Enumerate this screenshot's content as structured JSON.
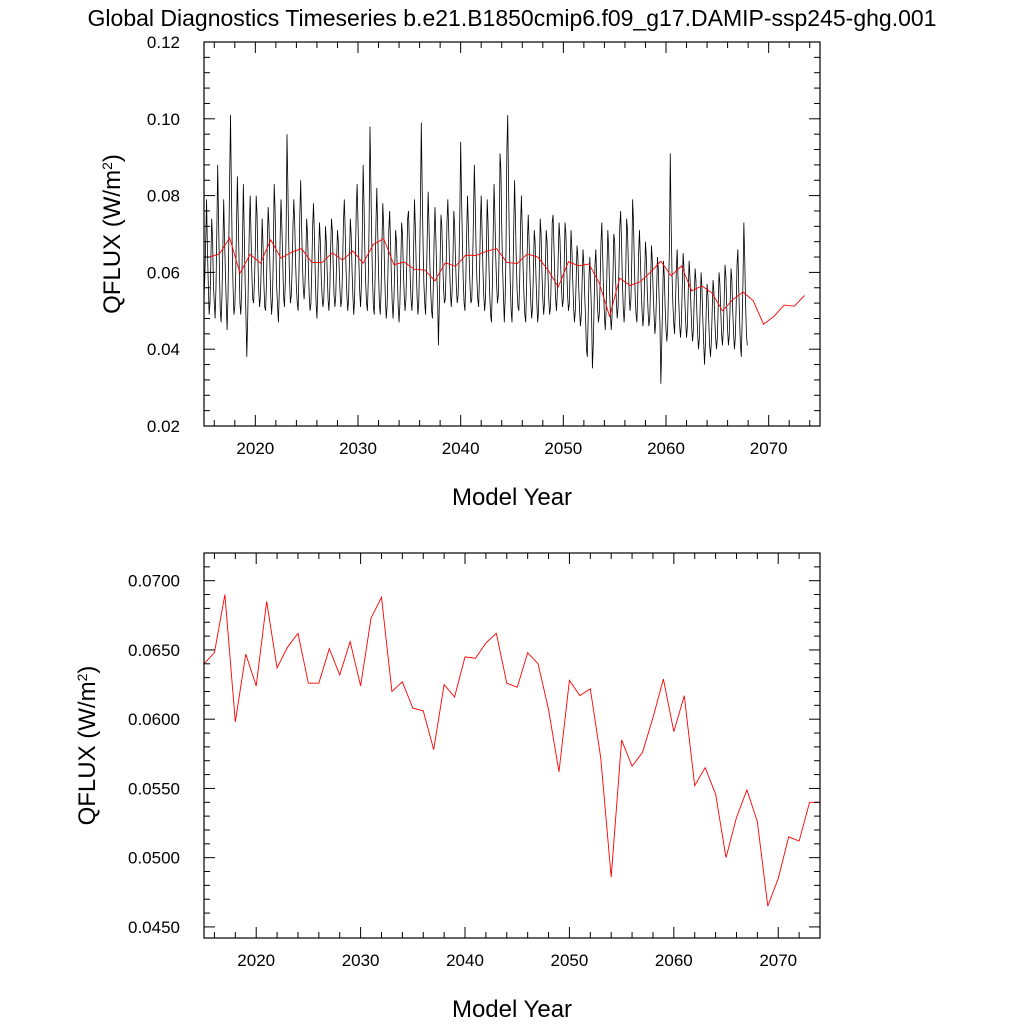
{
  "title": "Global Diagnostics Timeseries b.e21.B1850cmip6.f09_g17.DAMIP-ssp245-ghg.001",
  "colors": {
    "monthly_line": "#000000",
    "annual_line": "#ff0000",
    "axis": "#000000"
  },
  "chart_data": [
    {
      "type": "line",
      "xlabel": "Model Year",
      "ylabel_main": "QFLUX (W/m",
      "ylabel_sup": "2",
      "ylabel_close": ")",
      "xlim": [
        2015,
        2075
      ],
      "ylim": [
        0.02,
        0.12
      ],
      "xticks": [
        2020,
        2030,
        2040,
        2050,
        2060,
        2070
      ],
      "xtick_labels": [
        "2020",
        "2030",
        "2040",
        "2050",
        "2060",
        "2070"
      ],
      "yticks": [
        0.02,
        0.04,
        0.06,
        0.08,
        0.1,
        0.12
      ],
      "ytick_labels": [
        "0.02",
        "0.04",
        "0.06",
        "0.08",
        "0.10",
        "0.12"
      ],
      "grid": false,
      "series": [
        {
          "kind": "monthly",
          "color": "#000000",
          "x_start": 2015.0,
          "x_step": 0.083333,
          "values": [
            0.053,
            0.059,
            0.068,
            0.079,
            0.066,
            0.057,
            0.049,
            0.052,
            0.063,
            0.074,
            0.069,
            0.057,
            0.052,
            0.048,
            0.056,
            0.071,
            0.088,
            0.074,
            0.061,
            0.05,
            0.047,
            0.054,
            0.066,
            0.079,
            0.069,
            0.06,
            0.052,
            0.045,
            0.053,
            0.068,
            0.085,
            0.101,
            0.082,
            0.066,
            0.056,
            0.049,
            0.051,
            0.059,
            0.072,
            0.085,
            0.074,
            0.063,
            0.052,
            0.049,
            0.055,
            0.068,
            0.083,
            0.071,
            0.058,
            0.049,
            0.038,
            0.047,
            0.06,
            0.072,
            0.08,
            0.069,
            0.059,
            0.053,
            0.052,
            0.058,
            0.066,
            0.08,
            0.075,
            0.063,
            0.055,
            0.051,
            0.054,
            0.063,
            0.074,
            0.067,
            0.057,
            0.051,
            0.05,
            0.057,
            0.068,
            0.077,
            0.072,
            0.062,
            0.054,
            0.049,
            0.053,
            0.064,
            0.083,
            0.077,
            0.066,
            0.056,
            0.051,
            0.047,
            0.055,
            0.069,
            0.079,
            0.072,
            0.063,
            0.054,
            0.051,
            0.057,
            0.071,
            0.096,
            0.083,
            0.068,
            0.058,
            0.052,
            0.054,
            0.061,
            0.072,
            0.079,
            0.073,
            0.063,
            0.056,
            0.052,
            0.05,
            0.06,
            0.075,
            0.084,
            0.073,
            0.063,
            0.056,
            0.053,
            0.057,
            0.064,
            0.074,
            0.07,
            0.061,
            0.054,
            0.05,
            0.052,
            0.061,
            0.072,
            0.078,
            0.07,
            0.06,
            0.052,
            0.048,
            0.055,
            0.065,
            0.073,
            0.068,
            0.059,
            0.054,
            0.051,
            0.053,
            0.061,
            0.072,
            0.068,
            0.06,
            0.053,
            0.05,
            0.055,
            0.066,
            0.074,
            0.071,
            0.062,
            0.054,
            0.051,
            0.054,
            0.063,
            0.071,
            0.068,
            0.061,
            0.055,
            0.051,
            0.053,
            0.062,
            0.073,
            0.079,
            0.071,
            0.061,
            0.054,
            0.05,
            0.053,
            0.063,
            0.074,
            0.07,
            0.061,
            0.054,
            0.049,
            0.053,
            0.064,
            0.077,
            0.083,
            0.073,
            0.063,
            0.055,
            0.051,
            0.057,
            0.07,
            0.088,
            0.078,
            0.066,
            0.057,
            0.052,
            0.05,
            0.058,
            0.073,
            0.098,
            0.084,
            0.069,
            0.058,
            0.051,
            0.049,
            0.059,
            0.073,
            0.082,
            0.071,
            0.06,
            0.052,
            0.049,
            0.055,
            0.068,
            0.078,
            0.072,
            0.061,
            0.053,
            0.048,
            0.051,
            0.06,
            0.071,
            0.076,
            0.068,
            0.059,
            0.052,
            0.048,
            0.053,
            0.062,
            0.071,
            0.068,
            0.059,
            0.051,
            0.047,
            0.052,
            0.062,
            0.073,
            0.07,
            0.061,
            0.054,
            0.05,
            0.053,
            0.062,
            0.074,
            0.076,
            0.068,
            0.059,
            0.053,
            0.05,
            0.055,
            0.066,
            0.079,
            0.072,
            0.062,
            0.054,
            0.049,
            0.052,
            0.063,
            0.078,
            0.099,
            0.082,
            0.068,
            0.057,
            0.052,
            0.049,
            0.058,
            0.07,
            0.081,
            0.072,
            0.062,
            0.055,
            0.05,
            0.048,
            0.056,
            0.069,
            0.077,
            0.069,
            0.06,
            0.054,
            0.041,
            0.051,
            0.063,
            0.075,
            0.072,
            0.063,
            0.056,
            0.052,
            0.053,
            0.061,
            0.073,
            0.079,
            0.071,
            0.062,
            0.055,
            0.051,
            0.055,
            0.064,
            0.076,
            0.072,
            0.063,
            0.056,
            0.052,
            0.054,
            0.062,
            0.075,
            0.094,
            0.08,
            0.068,
            0.058,
            0.052,
            0.05,
            0.058,
            0.07,
            0.08,
            0.072,
            0.063,
            0.056,
            0.052,
            0.053,
            0.062,
            0.075,
            0.088,
            0.078,
            0.066,
            0.058,
            0.053,
            0.051,
            0.059,
            0.072,
            0.08,
            0.071,
            0.061,
            0.054,
            0.05,
            0.053,
            0.064,
            0.079,
            0.073,
            0.062,
            0.054,
            0.049,
            0.047,
            0.056,
            0.07,
            0.083,
            0.075,
            0.064,
            0.057,
            0.052,
            0.054,
            0.066,
            0.091,
            0.087,
            0.072,
            0.061,
            0.054,
            0.047,
            0.053,
            0.066,
            0.092,
            0.101,
            0.082,
            0.067,
            0.057,
            0.05,
            0.047,
            0.057,
            0.071,
            0.084,
            0.074,
            0.063,
            0.055,
            0.051,
            0.05,
            0.058,
            0.072,
            0.08,
            0.071,
            0.061,
            0.054,
            0.049,
            0.047,
            0.056,
            0.068,
            0.075,
            0.068,
            0.059,
            0.052,
            0.048,
            0.051,
            0.06,
            0.071,
            0.068,
            0.059,
            0.052,
            0.047,
            0.05,
            0.061,
            0.074,
            0.07,
            0.06,
            0.053,
            0.049,
            0.052,
            0.061,
            0.071,
            0.068,
            0.06,
            0.053,
            0.049,
            0.051,
            0.06,
            0.073,
            0.075,
            0.067,
            0.059,
            0.053,
            0.05,
            0.055,
            0.064,
            0.073,
            0.069,
            0.061,
            0.055,
            0.051,
            0.053,
            0.062,
            0.073,
            0.07,
            0.061,
            0.054,
            0.05,
            0.052,
            0.061,
            0.071,
            0.066,
            0.058,
            0.051,
            0.047,
            0.05,
            0.058,
            0.067,
            0.064,
            0.056,
            0.05,
            0.046,
            0.049,
            0.058,
            0.066,
            0.062,
            0.054,
            0.048,
            0.04,
            0.038,
            0.048,
            0.059,
            0.064,
            0.056,
            0.049,
            0.035,
            0.041,
            0.052,
            0.062,
            0.066,
            0.058,
            0.051,
            0.047,
            0.049,
            0.057,
            0.068,
            0.073,
            0.064,
            0.055,
            0.049,
            0.045,
            0.05,
            0.061,
            0.071,
            0.066,
            0.056,
            0.049,
            0.045,
            0.049,
            0.059,
            0.07,
            0.068,
            0.059,
            0.052,
            0.048,
            0.051,
            0.061,
            0.072,
            0.076,
            0.068,
            0.058,
            0.051,
            0.047,
            0.051,
            0.061,
            0.074,
            0.071,
            0.062,
            0.054,
            0.05,
            0.053,
            0.063,
            0.079,
            0.073,
            0.062,
            0.054,
            0.049,
            0.047,
            0.055,
            0.065,
            0.071,
            0.064,
            0.056,
            0.05,
            0.046,
            0.049,
            0.058,
            0.068,
            0.064,
            0.056,
            0.05,
            0.046,
            0.048,
            0.057,
            0.067,
            0.063,
            0.055,
            0.049,
            0.044,
            0.047,
            0.055,
            0.064,
            0.061,
            0.053,
            0.046,
            0.031,
            0.041,
            0.052,
            0.063,
            0.059,
            0.051,
            0.045,
            0.042,
            0.046,
            0.056,
            0.066,
            0.091,
            0.073,
            0.06,
            0.052,
            0.047,
            0.044,
            0.051,
            0.06,
            0.066,
            0.059,
            0.052,
            0.046,
            0.043,
            0.047,
            0.056,
            0.065,
            0.061,
            0.053,
            0.047,
            0.043,
            0.046,
            0.055,
            0.063,
            0.059,
            0.052,
            0.046,
            0.042,
            0.045,
            0.053,
            0.061,
            0.058,
            0.05,
            0.044,
            0.04,
            0.043,
            0.051,
            0.06,
            0.056,
            0.048,
            0.042,
            0.036,
            0.041,
            0.05,
            0.057,
            0.054,
            0.047,
            0.041,
            0.038,
            0.042,
            0.05,
            0.058,
            0.055,
            0.048,
            0.043,
            0.04,
            0.043,
            0.051,
            0.06,
            0.057,
            0.05,
            0.044,
            0.041,
            0.045,
            0.053,
            0.062,
            0.059,
            0.051,
            0.045,
            0.041,
            0.044,
            0.052,
            0.061,
            0.058,
            0.05,
            0.044,
            0.04,
            0.043,
            0.051,
            0.062,
            0.066,
            0.056,
            0.048,
            0.041,
            0.038,
            0.047,
            0.058,
            0.073,
            0.064,
            0.052,
            0.044,
            0.041
          ]
        },
        {
          "kind": "annual",
          "color": "#ff0000",
          "x": [
            2015.5,
            2016.5,
            2017.5,
            2018.5,
            2019.5,
            2020.5,
            2021.5,
            2022.5,
            2023.5,
            2024.5,
            2025.5,
            2026.5,
            2027.5,
            2028.5,
            2029.5,
            2030.5,
            2031.5,
            2032.5,
            2033.5,
            2034.5,
            2035.5,
            2036.5,
            2037.5,
            2038.5,
            2039.5,
            2040.5,
            2041.5,
            2042.5,
            2043.5,
            2044.5,
            2045.5,
            2046.5,
            2047.5,
            2048.5,
            2049.5,
            2050.5,
            2051.5,
            2052.5,
            2053.5,
            2054.5,
            2055.5,
            2056.5,
            2057.5,
            2058.5,
            2059.5,
            2060.5,
            2061.5,
            2062.5,
            2063.5,
            2064.5,
            2065.5,
            2066.5,
            2067.5,
            2068.5,
            2069.5,
            2070.5,
            2071.5,
            2072.5,
            2073.5
          ],
          "values": [
            0.064,
            0.0648,
            0.069,
            0.0598,
            0.0647,
            0.0624,
            0.0685,
            0.0637,
            0.0652,
            0.0662,
            0.0626,
            0.0626,
            0.0651,
            0.0632,
            0.0656,
            0.0624,
            0.0673,
            0.0688,
            0.062,
            0.0627,
            0.0608,
            0.0606,
            0.0578,
            0.0625,
            0.0616,
            0.0645,
            0.0644,
            0.0655,
            0.0662,
            0.0626,
            0.0623,
            0.0648,
            0.064,
            0.0607,
            0.0562,
            0.0628,
            0.0617,
            0.0622,
            0.0572,
            0.0486,
            0.0585,
            0.0566,
            0.0576,
            0.0601,
            0.0629,
            0.0591,
            0.0617,
            0.0552,
            0.0565,
            0.0546,
            0.05,
            0.0529,
            0.0549,
            0.0526,
            0.0465,
            0.0485,
            0.0515,
            0.0512,
            0.054
          ]
        }
      ]
    },
    {
      "type": "line",
      "xlabel": "Model Year",
      "ylabel_main": "QFLUX (W/m",
      "ylabel_sup": "2",
      "ylabel_close": ")",
      "xlim": [
        2015,
        2074
      ],
      "ylim": [
        0.0442,
        0.072
      ],
      "xticks": [
        2020,
        2030,
        2040,
        2050,
        2060,
        2070
      ],
      "xtick_labels": [
        "2020",
        "2030",
        "2040",
        "2050",
        "2060",
        "2070"
      ],
      "yticks": [
        0.045,
        0.05,
        0.055,
        0.06,
        0.065,
        0.07
      ],
      "ytick_labels": [
        "0.0450",
        "0.0500",
        "0.0550",
        "0.0600",
        "0.0650",
        "0.0700"
      ],
      "grid": false,
      "series": [
        {
          "kind": "annual",
          "color": "#ff0000",
          "x": [
            2015.0,
            2016.0,
            2017.0,
            2018.0,
            2019.0,
            2020.0,
            2021.0,
            2022.0,
            2023.0,
            2024.0,
            2025.0,
            2026.0,
            2027.0,
            2028.0,
            2029.0,
            2030.0,
            2031.0,
            2032.0,
            2033.0,
            2034.0,
            2035.0,
            2036.0,
            2037.0,
            2038.0,
            2039.0,
            2040.0,
            2041.0,
            2042.0,
            2043.0,
            2044.0,
            2045.0,
            2046.0,
            2047.0,
            2048.0,
            2049.0,
            2050.0,
            2051.0,
            2052.0,
            2053.0,
            2054.0,
            2055.0,
            2056.0,
            2057.0,
            2058.0,
            2059.0,
            2060.0,
            2061.0,
            2062.0,
            2063.0,
            2064.0,
            2065.0,
            2066.0,
            2067.0,
            2068.0,
            2069.0,
            2070.0,
            2071.0,
            2072.0,
            2073.0,
            2074.0
          ],
          "values": [
            0.064,
            0.0648,
            0.069,
            0.0598,
            0.0647,
            0.0624,
            0.0685,
            0.0637,
            0.0652,
            0.0662,
            0.0626,
            0.0626,
            0.0651,
            0.0632,
            0.0656,
            0.0624,
            0.0673,
            0.0688,
            0.062,
            0.0627,
            0.0608,
            0.0606,
            0.0578,
            0.0625,
            0.0616,
            0.0645,
            0.0644,
            0.0655,
            0.0662,
            0.0626,
            0.0623,
            0.0648,
            0.064,
            0.0607,
            0.0562,
            0.0628,
            0.0617,
            0.0622,
            0.0572,
            0.0486,
            0.0585,
            0.0566,
            0.0576,
            0.0601,
            0.0629,
            0.0591,
            0.0617,
            0.0552,
            0.0565,
            0.0546,
            0.05,
            0.0529,
            0.0549,
            0.0526,
            0.0465,
            0.0485,
            0.0515,
            0.0512,
            0.054,
            0.054
          ]
        }
      ]
    }
  ]
}
